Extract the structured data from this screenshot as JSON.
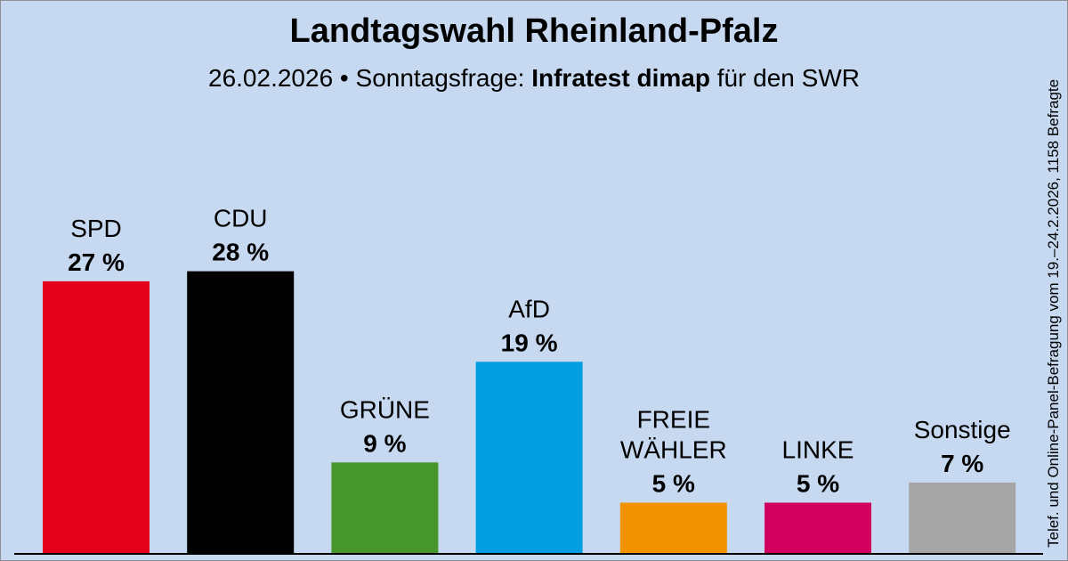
{
  "chart_data": {
    "type": "bar",
    "title": "Landtagswahl Rheinland-Pfalz",
    "subtitle": {
      "date": "26.02.2026",
      "separator": "•",
      "prefix": "Sonntagsfrage:",
      "institute": "Infratest dimap",
      "suffix": "für den SWR"
    },
    "side_note": "Telef. und Online-Panel-Befragung vom 19.–24.2.2026, 1158 Befragte",
    "categories": [
      "SPD",
      "CDU",
      "GRÜNE",
      "AfD",
      "FREIE WÄHLER",
      "LINKE",
      "Sonstige"
    ],
    "label_lines": [
      [
        "SPD"
      ],
      [
        "CDU"
      ],
      [
        "GRÜNE"
      ],
      [
        "AfD"
      ],
      [
        "FREIE",
        "WÄHLER"
      ],
      [
        "LINKE"
      ],
      [
        "Sonstige"
      ]
    ],
    "values": [
      27,
      28,
      9,
      19,
      5,
      5,
      7
    ],
    "value_labels": [
      "27 %",
      "28 %",
      "9 %",
      "19 %",
      "5 %",
      "5 %",
      "7 %"
    ],
    "colors": [
      "#e3001b",
      "#000000",
      "#46962b",
      "#009ee0",
      "#f29200",
      "#d1005e",
      "#a6a6a6"
    ],
    "unit": "%",
    "xlabel": "",
    "ylabel": "",
    "ylim": [
      0,
      28
    ],
    "grid": false,
    "legend": "none"
  },
  "background_color": "#c6d9f0"
}
